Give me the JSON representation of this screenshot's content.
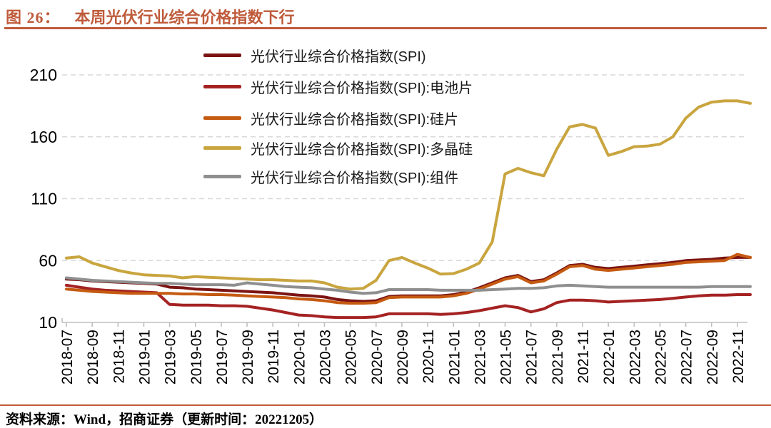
{
  "figure": {
    "label": "图 26：",
    "title": "本周光伏行业综合价格指数下行"
  },
  "source": {
    "text": "资料来源：Wind，招商证券（更新时间：20221205）"
  },
  "colors": {
    "accent": "#BF5B3B",
    "grid": "#D9D9D9",
    "axis": "#BFBFBF",
    "label_text": "#000000"
  },
  "chart_data": {
    "type": "line",
    "title": "本周光伏行业综合价格指数下行",
    "x_start": "2018-07",
    "x_interval": "1 month",
    "x_tick_labels": [
      "2018-07",
      "2018-09",
      "2018-11",
      "2019-01",
      "2019-03",
      "2019-05",
      "2019-07",
      "2019-09",
      "2019-11",
      "2020-01",
      "2020-03",
      "2020-05",
      "2020-07",
      "2020-09",
      "2020-11",
      "2021-01",
      "2021-03",
      "2021-05",
      "2021-07",
      "2021-09",
      "2021-11",
      "2022-01",
      "2022-03",
      "2022-05",
      "2022-07",
      "2022-09",
      "2022-11"
    ],
    "ylim": [
      10,
      210
    ],
    "y_ticks": [
      10,
      60,
      110,
      160,
      210
    ],
    "grid": "horizontal-dashed",
    "legend_position": "top-inside",
    "series": [
      {
        "name": "光伏行业综合价格指数(SPI)",
        "color": "#7C1414",
        "values": [
          45,
          44.5,
          43.5,
          43,
          42.5,
          42,
          41.5,
          41,
          38.5,
          38,
          37,
          36.5,
          36,
          35.5,
          35,
          34.5,
          34,
          33,
          32,
          31.5,
          30.5,
          28.5,
          27.5,
          27,
          27.5,
          31,
          31.5,
          31.5,
          31.5,
          31.5,
          32.5,
          34.5,
          38,
          42,
          46,
          48,
          43,
          44.5,
          50,
          56,
          57,
          54.5,
          53.5,
          54.5,
          55.5,
          56.5,
          57.5,
          58.5,
          60,
          60.5,
          61,
          62,
          62.5,
          62.5
        ]
      },
      {
        "name": "光伏行业综合价格指数(SPI):电池片",
        "color": "#A52222",
        "values": [
          40,
          38.5,
          37,
          36,
          35.5,
          35,
          34.5,
          34,
          24.5,
          24,
          24,
          24,
          23.5,
          23.5,
          23,
          21.5,
          20,
          18,
          16,
          15.5,
          14.5,
          14,
          14,
          14,
          14.5,
          17,
          17,
          17,
          17,
          16.5,
          17,
          18,
          19.5,
          21.5,
          23.5,
          22,
          18.5,
          21,
          26,
          28,
          28,
          27.5,
          26.5,
          27,
          27.5,
          28,
          28.5,
          29.5,
          30.5,
          31.5,
          32,
          32,
          32.5,
          32.5
        ]
      },
      {
        "name": "光伏行业综合价格指数(SPI):硅片",
        "color": "#C55A11",
        "values": [
          37,
          36,
          35,
          34.5,
          34,
          33.5,
          33.5,
          33.5,
          33.5,
          33,
          33,
          32.5,
          32.5,
          32,
          31.5,
          31,
          30.5,
          30,
          29,
          28.5,
          27.5,
          26,
          25.5,
          25.5,
          26,
          30,
          30.5,
          30.5,
          30.5,
          30.5,
          31.5,
          33.5,
          37,
          41,
          45,
          47,
          42,
          43.5,
          49,
          55,
          56,
          53,
          52,
          53,
          54,
          55,
          56,
          57,
          58.5,
          59,
          59.5,
          60,
          65,
          62.5
        ]
      },
      {
        "name": "光伏行业综合价格指数(SPI):多晶硅",
        "color": "#C9A53F",
        "values": [
          62,
          63,
          58,
          55,
          52,
          50,
          48.5,
          48,
          47.5,
          46,
          47,
          46.5,
          46,
          45.5,
          45,
          44.5,
          44.5,
          44,
          43.5,
          43.5,
          42,
          38.5,
          37,
          37.5,
          44,
          60,
          62.5,
          58,
          54,
          49,
          49.5,
          53,
          58,
          75,
          130,
          134.5,
          131,
          128.5,
          150,
          168,
          170,
          167,
          145,
          148,
          152,
          152.5,
          154,
          160,
          175,
          184,
          188,
          189,
          189,
          187
        ]
      },
      {
        "name": "光伏行业综合价格指数(SPI):组件",
        "color": "#8F8F8F",
        "values": [
          46,
          45,
          44,
          43.5,
          43,
          42.5,
          42,
          41.5,
          41.5,
          41,
          40.5,
          40.5,
          40.5,
          40,
          42,
          41,
          40,
          39,
          38.5,
          38,
          37,
          36,
          34.5,
          33.5,
          34,
          36.5,
          36.5,
          36.5,
          36.5,
          36,
          36,
          36,
          36,
          36.5,
          37,
          37.5,
          37.5,
          38,
          39.5,
          40,
          39.5,
          39,
          38.5,
          38.5,
          38.5,
          38.5,
          38.5,
          38.5,
          38.5,
          38.5,
          39,
          39,
          39,
          39
        ]
      }
    ]
  }
}
